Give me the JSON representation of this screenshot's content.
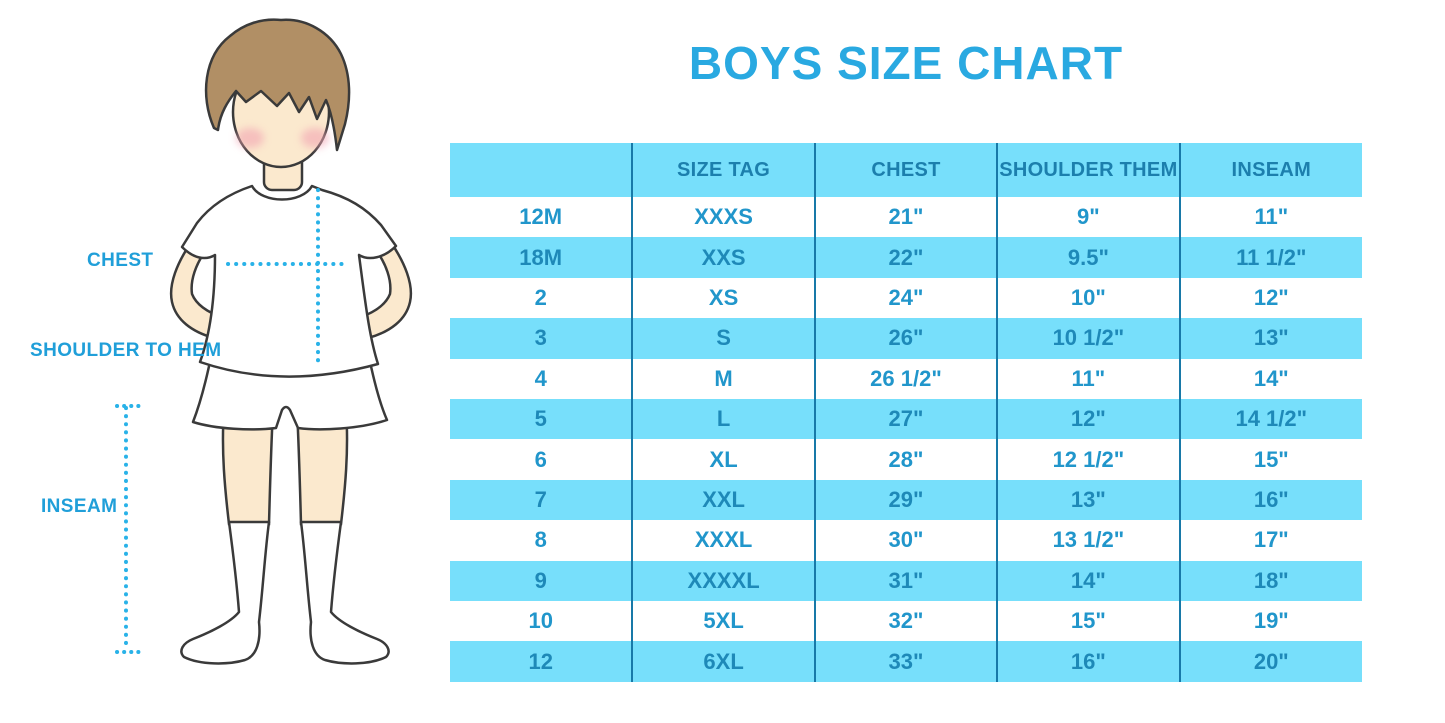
{
  "title": "BOYS SIZE CHART",
  "figure": {
    "labels": {
      "chest": "CHEST",
      "shoulder_to_hem": "SHOULDER TO HEM",
      "inseam": "INSEAM"
    },
    "illustration": "boy-in-white-tshirt-shorts-and-knee-socks",
    "measurement_line_color": "#29B2E8"
  },
  "colors": {
    "title_blue": "#29A9E1",
    "row_light_blue": "#77DFFB",
    "divider_blue": "#1879A8",
    "header_text_blue": "#1C7FAD",
    "cell_text_blue": "#2196CB",
    "label_blue": "#209FD9"
  },
  "chart_data": {
    "type": "table",
    "title": "BOYS SIZE CHART",
    "columns": [
      "",
      "SIZE TAG",
      "CHEST",
      "SHOULDER THEM",
      "INSEAM"
    ],
    "rows": [
      [
        "12M",
        "XXXS",
        "21\"",
        "9\"",
        "11\""
      ],
      [
        "18M",
        "XXS",
        "22\"",
        "9.5\"",
        "11 1/2\""
      ],
      [
        "2",
        "XS",
        "24\"",
        "10\"",
        "12\""
      ],
      [
        "3",
        "S",
        "26\"",
        "10 1/2\"",
        "13\""
      ],
      [
        "4",
        "M",
        "26 1/2\"",
        "11\"",
        "14\""
      ],
      [
        "5",
        "L",
        "27\"",
        "12\"",
        "14 1/2\""
      ],
      [
        "6",
        "XL",
        "28\"",
        "12 1/2\"",
        "15\""
      ],
      [
        "7",
        "XXL",
        "29\"",
        "13\"",
        "16\""
      ],
      [
        "8",
        "XXXL",
        "30\"",
        "13 1/2\"",
        "17\""
      ],
      [
        "9",
        "XXXXL",
        "31\"",
        "14\"",
        "18\""
      ],
      [
        "10",
        "5XL",
        "32\"",
        "15\"",
        "19\""
      ],
      [
        "12",
        "6XL",
        "33\"",
        "16\"",
        "20\""
      ]
    ],
    "layout": {
      "striped": true,
      "stripe_pattern": "header and even data rows light blue",
      "grid": "vertical dividers only"
    }
  }
}
